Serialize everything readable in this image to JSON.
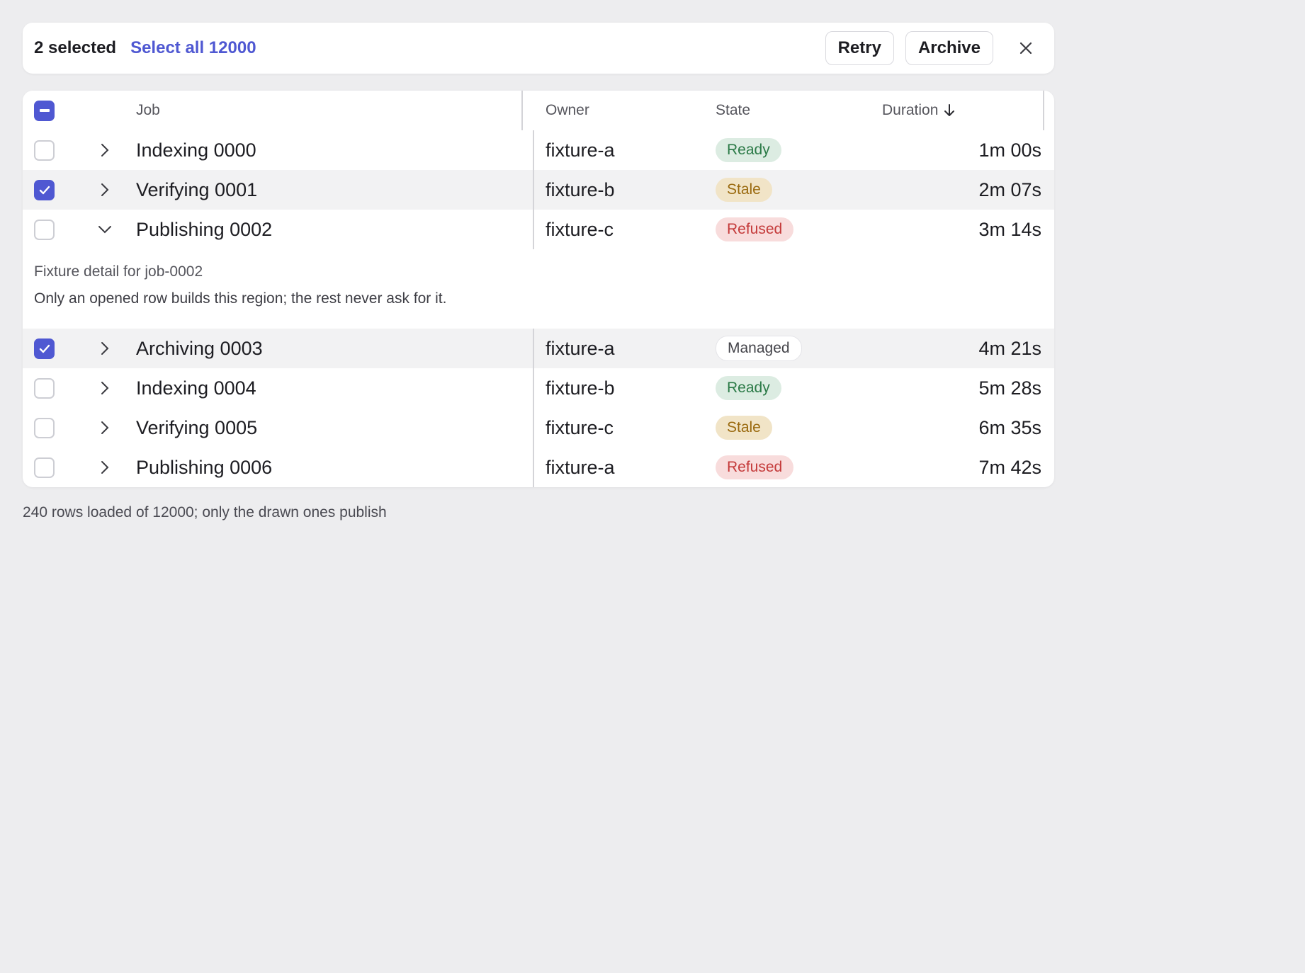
{
  "toolbar": {
    "selected_label": "2 selected",
    "select_all_label": "Select all 12000",
    "retry_label": "Retry",
    "archive_label": "Archive"
  },
  "columns": {
    "job": "Job",
    "owner": "Owner",
    "state": "State",
    "duration": "Duration"
  },
  "rows": [
    {
      "name": "Indexing 0000",
      "owner": "fixture-a",
      "state": "Ready",
      "duration": "1m 00s",
      "checked": false,
      "expanded": false
    },
    {
      "name": "Verifying 0001",
      "owner": "fixture-b",
      "state": "Stale",
      "duration": "2m 07s",
      "checked": true,
      "expanded": false
    },
    {
      "name": "Publishing 0002",
      "owner": "fixture-c",
      "state": "Refused",
      "duration": "3m 14s",
      "checked": false,
      "expanded": true
    },
    {
      "name": "Archiving 0003",
      "owner": "fixture-a",
      "state": "Managed",
      "duration": "4m 21s",
      "checked": true,
      "expanded": false
    },
    {
      "name": "Indexing 0004",
      "owner": "fixture-b",
      "state": "Ready",
      "duration": "5m 28s",
      "checked": false,
      "expanded": false
    },
    {
      "name": "Verifying 0005",
      "owner": "fixture-c",
      "state": "Stale",
      "duration": "6m 35s",
      "checked": false,
      "expanded": false
    },
    {
      "name": "Publishing 0006",
      "owner": "fixture-a",
      "state": "Refused",
      "duration": "7m 42s",
      "checked": false,
      "expanded": false
    }
  ],
  "detail": {
    "title": "Fixture detail for job-0002",
    "body": "Only an opened row builds this region; the rest never ask for it."
  },
  "footnote": "240 rows loaded of 12000; only the drawn ones publish",
  "colors": {
    "accent": "#4f58d2",
    "ready": "#2b7a47",
    "stale": "#9a6a0f",
    "refused": "#c43a3a"
  }
}
